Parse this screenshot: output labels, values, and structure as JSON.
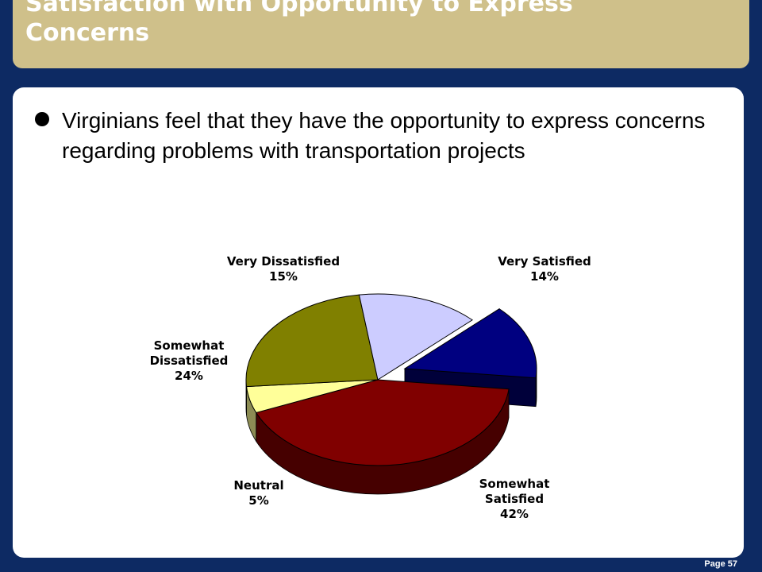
{
  "slide": {
    "title": "Satisfaction with Opportunity to Express\nConcerns",
    "bullet": "Virginians feel that they have the opportunity to express concerns regarding problems with transportation projects",
    "page_number": "Page 57"
  },
  "colors": {
    "background": "#0d2a63",
    "title_bar": "#cfc08a",
    "title_text": "#ffffff",
    "panel": "#ffffff"
  },
  "chart_data": {
    "type": "pie",
    "style": "3d-exploded",
    "slices": [
      {
        "label": "Very Satisfied",
        "value": 14,
        "value_label": "14%",
        "color": "#000080"
      },
      {
        "label": "Somewhat Satisfied",
        "value": 42,
        "value_label": "42%",
        "color": "#800000"
      },
      {
        "label": "Neutral",
        "value": 5,
        "value_label": "5%",
        "color": "#ffff99"
      },
      {
        "label": "Somewhat Dissatisfied",
        "value": 24,
        "value_label": "24%",
        "color": "#808000"
      },
      {
        "label": "Very Dissatisfied",
        "value": 15,
        "value_label": "15%",
        "color": "#ccccff"
      }
    ],
    "legend": "none",
    "data_labels": "outside with category name and percent"
  }
}
